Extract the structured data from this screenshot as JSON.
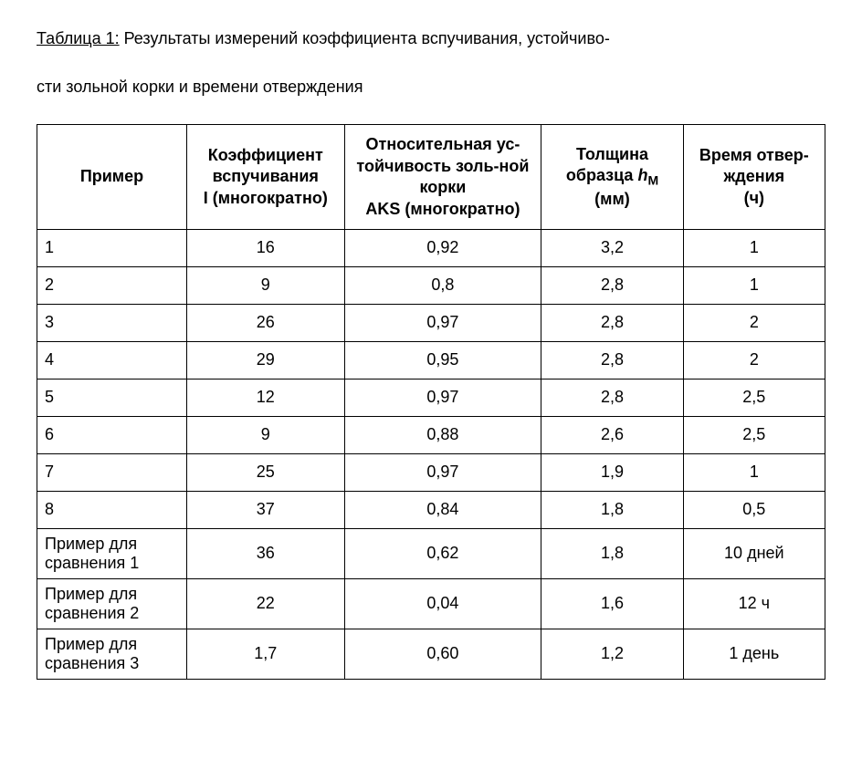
{
  "caption": {
    "label": "Таблица 1:",
    "text_line1": " Результаты измерений коэффициента вспучивания, устойчиво-",
    "text_line2": "сти зольной корки и времени отверждения"
  },
  "table": {
    "headers": {
      "c1": "Пример",
      "c2_line1": "Коэффициент вспучивания",
      "c2_line2": "I (многократно)",
      "c3_line1": "Относительная ус-тойчивость золь-ной корки",
      "c3_line2": "AKS (многократно)",
      "c4_line1": "Толщина образца ",
      "c4_h": "h",
      "c4_sub": "М",
      "c4_line2": "(мм)",
      "c5_line1": "Время отвер-ждения",
      "c5_line2": "(ч)"
    },
    "rows": [
      {
        "label": "1",
        "coef": "16",
        "aks": "0,92",
        "thick": "3,2",
        "time": "1"
      },
      {
        "label": "2",
        "coef": "9",
        "aks": "0,8",
        "thick": "2,8",
        "time": "1"
      },
      {
        "label": "3",
        "coef": "26",
        "aks": "0,97",
        "thick": "2,8",
        "time": "2"
      },
      {
        "label": "4",
        "coef": "29",
        "aks": "0,95",
        "thick": "2,8",
        "time": "2"
      },
      {
        "label": "5",
        "coef": "12",
        "aks": "0,97",
        "thick": "2,8",
        "time": "2,5"
      },
      {
        "label": "6",
        "coef": "9",
        "aks": "0,88",
        "thick": "2,6",
        "time": "2,5"
      },
      {
        "label": "7",
        "coef": "25",
        "aks": "0,97",
        "thick": "1,9",
        "time": "1"
      },
      {
        "label": "8",
        "coef": "37",
        "aks": "0,84",
        "thick": "1,8",
        "time": "0,5"
      },
      {
        "label": "Пример для сравнения 1",
        "coef": "36",
        "aks": "0,62",
        "thick": "1,8",
        "time": "10 дней"
      },
      {
        "label": "Пример для сравнения 2",
        "coef": "22",
        "aks": "0,04",
        "thick": "1,6",
        "time": "12 ч"
      },
      {
        "label": "Пример для сравнения 3",
        "coef": "1,7",
        "aks": "0,60",
        "thick": "1,2",
        "time": "1 день"
      }
    ]
  }
}
